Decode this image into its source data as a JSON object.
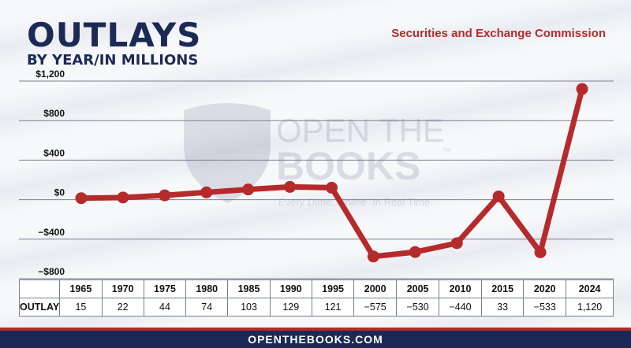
{
  "header": {
    "title": "OUTLAYS",
    "subtitle": "BY YEAR/IN MILLIONS",
    "agency": "Securities and Exchange Commission"
  },
  "watermark": {
    "line1": "OPEN THE",
    "line2": "BOOKS",
    "tm": "™",
    "tagline": "Every Dime. Online. In Real Time."
  },
  "table": {
    "row_label": "OUTLAY",
    "values": [
      "15",
      "22",
      "44",
      "74",
      "103",
      "129",
      "121",
      "−575",
      "−530",
      "−440",
      "33",
      "−533",
      "1,120"
    ]
  },
  "footer": {
    "text": "OPENTHEBOOKS.COM"
  },
  "colors": {
    "line": "#b52a2a",
    "navy": "#1b2a55"
  },
  "chart_data": {
    "type": "line",
    "categories": [
      "1965",
      "1970",
      "1975",
      "1980",
      "1985",
      "1990",
      "1995",
      "2000",
      "2005",
      "2010",
      "2015",
      "2020",
      "2024"
    ],
    "series": [
      {
        "values": [
          15,
          22,
          44,
          74,
          103,
          129,
          121,
          -575,
          -530,
          -440,
          33,
          -533,
          1120
        ]
      }
    ],
    "ylim": [
      -800,
      1200
    ],
    "yticks": [
      1200,
      800,
      400,
      0,
      -400,
      -800
    ],
    "ytick_labels": [
      "$1,200",
      "$800",
      "$400",
      "$0",
      "−$400",
      "−$800"
    ],
    "grid": true
  }
}
